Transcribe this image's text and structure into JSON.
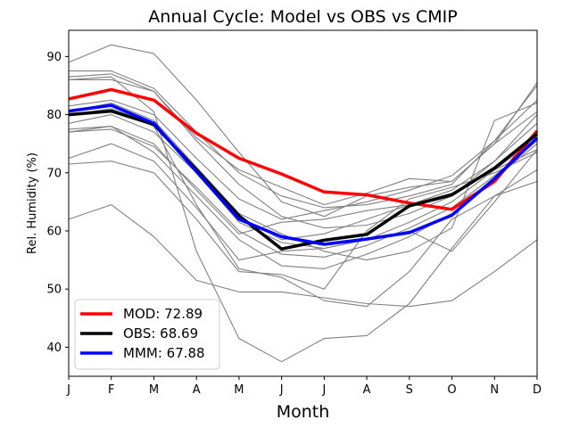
{
  "chart_data": {
    "type": "line",
    "title": "Annual Cycle: Model vs OBS vs CMIP",
    "xlabel": "Month",
    "ylabel": "Rel. Humidity (%)",
    "categories": [
      "J",
      "F",
      "M",
      "A",
      "M",
      "J",
      "J",
      "A",
      "S",
      "O",
      "N",
      "D"
    ],
    "ylim": [
      35,
      94.5
    ],
    "yticks": [
      40,
      50,
      60,
      70,
      80,
      90
    ],
    "legend_position": "lower-left",
    "series": [
      {
        "name": "MOD: 72.89",
        "color": "#ff0000",
        "values": [
          82.7,
          84.3,
          82.5,
          76.8,
          72.5,
          69.8,
          66.7,
          66.2,
          64.8,
          63.7,
          68.5,
          77.2
        ]
      },
      {
        "name": "OBS: 68.69",
        "color": "#000000",
        "values": [
          80.0,
          80.6,
          78.3,
          70.5,
          62.6,
          56.9,
          58.4,
          59.4,
          64.3,
          66.2,
          70.8,
          76.7
        ]
      },
      {
        "name": "MMM: 67.88",
        "color": "#0000ff",
        "values": [
          80.6,
          81.6,
          78.5,
          70.2,
          62.0,
          59.0,
          57.7,
          58.6,
          59.7,
          62.7,
          69.0,
          76.0
        ]
      }
    ],
    "cmip_models": [
      [
        89.0,
        92.0,
        90.5,
        82.5,
        73.5,
        65.0,
        62.5,
        66.0,
        67.5,
        68.5,
        75.0,
        85.5
      ],
      [
        87.5,
        87.5,
        84.5,
        77.0,
        70.0,
        66.0,
        64.0,
        64.5,
        66.0,
        68.0,
        75.5,
        85.0
      ],
      [
        86.5,
        87.0,
        84.0,
        75.5,
        68.0,
        62.5,
        60.5,
        61.0,
        63.0,
        66.0,
        72.0,
        80.0
      ],
      [
        81.5,
        82.5,
        80.0,
        72.5,
        65.5,
        62.0,
        63.5,
        65.0,
        67.0,
        69.5,
        75.5,
        82.5
      ],
      [
        78.5,
        80.0,
        77.0,
        70.0,
        62.5,
        58.5,
        59.5,
        62.0,
        64.5,
        67.0,
        72.0,
        78.5
      ],
      [
        77.0,
        77.5,
        74.5,
        67.5,
        60.0,
        56.0,
        55.5,
        57.5,
        60.5,
        64.0,
        69.5,
        75.5
      ],
      [
        77.5,
        78.0,
        73.5,
        66.0,
        58.5,
        54.0,
        53.5,
        56.0,
        59.0,
        63.0,
        69.0,
        75.0
      ],
      [
        72.5,
        75.0,
        72.0,
        64.0,
        55.0,
        56.5,
        57.0,
        58.5,
        61.5,
        65.0,
        70.5,
        74.0
      ],
      [
        71.5,
        72.0,
        70.0,
        62.0,
        53.0,
        52.5,
        50.0,
        60.0,
        65.5,
        67.5,
        70.0,
        73.5
      ],
      [
        62.0,
        64.5,
        59.0,
        51.5,
        49.5,
        49.5,
        48.5,
        47.5,
        47.0,
        48.0,
        53.0,
        58.5
      ],
      [
        86.0,
        86.5,
        80.5,
        56.5,
        41.5,
        37.5,
        41.5,
        42.0,
        47.5,
        57.0,
        66.0,
        70.5
      ],
      [
        80.0,
        81.0,
        78.0,
        64.5,
        53.5,
        52.0,
        48.0,
        47.0,
        53.0,
        62.0,
        66.0,
        68.5
      ],
      [
        86.0,
        86.0,
        84.0,
        76.0,
        70.5,
        67.5,
        64.5,
        66.5,
        69.0,
        68.5,
        75.0,
        80.5
      ],
      [
        80.5,
        82.0,
        79.0,
        71.0,
        63.0,
        59.5,
        56.5,
        55.0,
        56.5,
        60.5,
        79.0,
        82.0
      ],
      [
        80.0,
        81.0,
        78.5,
        70.0,
        61.5,
        58.0,
        57.0,
        58.5,
        60.0,
        56.5,
        65.0,
        74.0
      ],
      [
        77.0,
        78.0,
        75.0,
        67.0,
        59.5,
        61.5,
        62.0,
        63.5,
        64.5,
        66.5,
        70.5,
        76.0
      ]
    ]
  }
}
